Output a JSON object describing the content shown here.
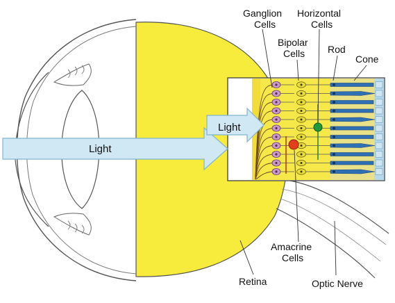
{
  "labels": {
    "ganglion_line1": "Ganglion",
    "ganglion_line2": "Cells",
    "horizontal_line1": "Horizontal",
    "horizontal_line2": "Cells",
    "bipolar_line1": "Bipolar",
    "bipolar_line2": "Cells",
    "rod": "Rod",
    "cone": "Cone",
    "amacrine_line1": "Amacrine",
    "amacrine_line2": "Cells",
    "retina": "Retina",
    "optic_nerve": "Optic Nerve",
    "light_main": "Light",
    "light_inset": "Light"
  },
  "colors": {
    "vitreous_yellow": "#f7ec3c",
    "arrow_fill": "#cfe8f3",
    "arrow_stroke": "#7fb5cf",
    "photoreceptor_blue": "#2f6fb3",
    "bipolar_yellow": "#e8dc3a",
    "ganglion_purple": "#c99ac9",
    "horizontal_green": "#1f9a3b",
    "amacrine_red": "#e2401a",
    "line": "#444444"
  }
}
